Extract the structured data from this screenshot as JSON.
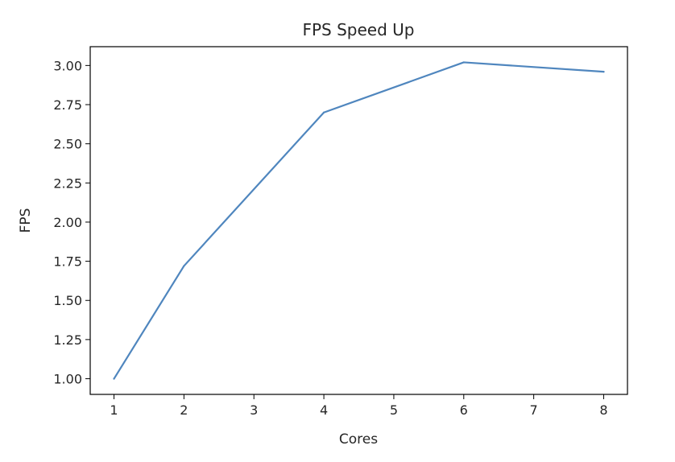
{
  "chart_data": {
    "type": "line",
    "title": "FPS Speed Up",
    "xlabel": "Cores",
    "ylabel": "FPS",
    "x": [
      1,
      2,
      4,
      6,
      8
    ],
    "series": [
      {
        "values": [
          1.0,
          1.72,
          2.7,
          3.02,
          2.96
        ]
      }
    ],
    "xlim": [
      0.66,
      8.34
    ],
    "ylim": [
      0.9,
      3.12
    ],
    "xticks": [
      1,
      2,
      3,
      4,
      5,
      6,
      7,
      8
    ],
    "yticks": [
      1.0,
      1.25,
      1.5,
      1.75,
      2.0,
      2.25,
      2.5,
      2.75,
      3.0
    ],
    "ytick_labels": [
      "1.00",
      "1.25",
      "1.50",
      "1.75",
      "2.00",
      "2.25",
      "2.50",
      "2.75",
      "3.00"
    ],
    "line_color": "#4f86be",
    "grid": false,
    "legend": "none"
  }
}
